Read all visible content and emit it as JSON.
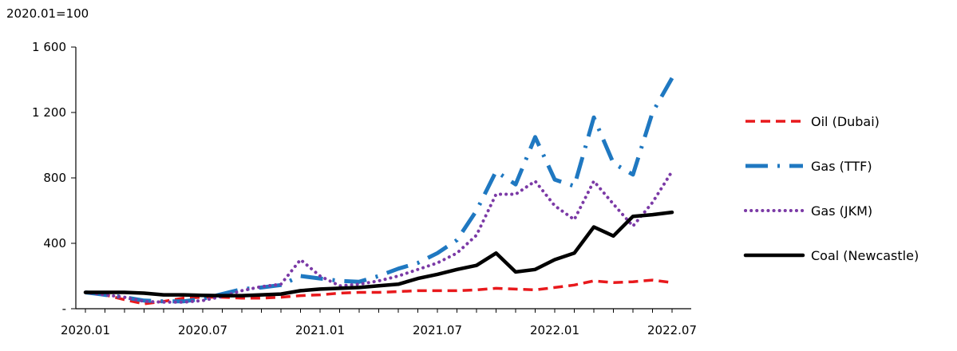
{
  "chart_data": {
    "type": "line",
    "unit_label": "2020.01=100",
    "xlabel": "",
    "ylabel": "",
    "title": "",
    "x": [
      "2020.01",
      "2020.02",
      "2020.03",
      "2020.04",
      "2020.05",
      "2020.06",
      "2020.07",
      "2020.08",
      "2020.09",
      "2020.10",
      "2020.11",
      "2020.12",
      "2021.01",
      "2021.02",
      "2021.03",
      "2021.04",
      "2021.05",
      "2021.06",
      "2021.07",
      "2021.08",
      "2021.09",
      "2021.10",
      "2021.11",
      "2021.12",
      "2022.01",
      "2022.02",
      "2022.03",
      "2022.04",
      "2022.05",
      "2022.06",
      "2022.07"
    ],
    "x_tick_labels": [
      "2020.01",
      "2020.07",
      "2021.01",
      "2021.07",
      "2022.01",
      "2022.07"
    ],
    "x_tick_index": [
      0,
      6,
      12,
      18,
      24,
      30
    ],
    "y_ticks": [
      0,
      400,
      800,
      1200,
      1600
    ],
    "y_tick_labels": [
      "-",
      "400",
      "800",
      "1 200",
      "1 600"
    ],
    "ylim": [
      0,
      1600
    ],
    "grid": false,
    "legend_position": "right",
    "series": [
      {
        "name": "Oil (Dubai)",
        "color": "#e8191c",
        "style": "dashed",
        "values": [
          100,
          85,
          55,
          30,
          45,
          65,
          70,
          70,
          65,
          65,
          70,
          80,
          85,
          95,
          100,
          100,
          105,
          110,
          110,
          110,
          115,
          125,
          120,
          115,
          130,
          145,
          170,
          160,
          165,
          175,
          160
        ]
      },
      {
        "name": "Gas (TTF)",
        "color": "#1f78c1",
        "style": "dashdot",
        "values": [
          100,
          85,
          70,
          50,
          45,
          45,
          60,
          90,
          120,
          130,
          145,
          200,
          185,
          170,
          165,
          200,
          245,
          280,
          340,
          420,
          600,
          840,
          760,
          1050,
          790,
          750,
          1170,
          890,
          820,
          1200,
          1410
        ]
      },
      {
        "name": "Gas (JKM)",
        "color": "#7b3aa6",
        "style": "dotted",
        "values": [
          100,
          85,
          70,
          45,
          40,
          40,
          50,
          75,
          110,
          135,
          150,
          300,
          200,
          140,
          150,
          170,
          200,
          240,
          280,
          340,
          450,
          700,
          700,
          780,
          630,
          545,
          780,
          640,
          505,
          650,
          840
        ]
      },
      {
        "name": "Coal (Newcastle)",
        "color": "#000000",
        "style": "solid",
        "values": [
          100,
          100,
          100,
          95,
          85,
          85,
          82,
          80,
          80,
          85,
          90,
          110,
          120,
          125,
          130,
          140,
          150,
          185,
          210,
          240,
          265,
          340,
          225,
          240,
          300,
          340,
          500,
          445,
          565,
          575,
          590
        ]
      }
    ]
  }
}
